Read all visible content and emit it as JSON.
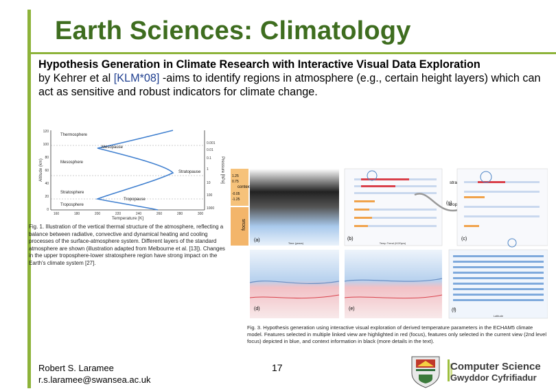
{
  "slide": {
    "title": "Earth Sciences: Climatology",
    "subtitle_bold": "Hypothesis Generation in Climate Research with Interactive Visual Data Exploration",
    "body_pre": "by Kehrer et al ",
    "body_ref": "[KLM*08]",
    "body_post": " -aims to identify regions in atmosphere (e.g., certain height layers) which can act as sensitive and robust indicators for climate change."
  },
  "figure1": {
    "ylabel": "Altitude (km)",
    "xlabel": "Temperature [K]",
    "right_label": "Pressure [hPa]",
    "layers": [
      "Thermosphere",
      "Mesopause",
      "Mesosphere",
      "Stratopause",
      "Stratosphere",
      "Tropopause",
      "Troposphere"
    ],
    "y_ticks": [
      "120",
      "100",
      "80",
      "60",
      "40",
      "20",
      "0"
    ],
    "x_ticks": [
      "160",
      "180",
      "200",
      "220",
      "240",
      "260",
      "280",
      "300"
    ],
    "p_ticks": [
      "0.001",
      "0.01",
      "0.1",
      "1",
      "10",
      "100",
      "1000"
    ],
    "caption": "Fig. 1. Illustration of the vertical thermal structure of the atmosphere, reflecting a balance between radiative, convective and dynamical heating and cooling processes of the surface-atmosphere system. Different layers of the standard atmosphere are shown (illustration adapted from Melbourne et al. [13]). Changes in the upper troposphere-lower stratosphere region have strong impact on the Earth's climate system [27]."
  },
  "figure3": {
    "panels": [
      "(a)",
      "(b)",
      "(c)",
      "(d)",
      "(e)",
      "(f)",
      "(g)"
    ],
    "context_label": "context",
    "focus_label": "focus",
    "left_values": [
      "1.25",
      "0.75",
      "-0.05",
      "-1.25"
    ],
    "stratosphere_label": "strato-sphere",
    "troposphere_label": "tropo-sphere",
    "tropopause_label": "tropo-pause",
    "axis_time": "Time (years)",
    "axis_trend": "Temp Trend (K/20yrs)",
    "axis_latitude": "Latitude",
    "caption": "Fig. 3. Hypothesis generation using interactive visual exploration of derived temperature parameters in the ECHAM5 climate model. Features selected in multiple linked view are highlighted in red (focus), features only selected in the current view (2nd level focus) depicted in blue, and context information in black (more details in the text)."
  },
  "footer": {
    "author": "Robert S. Laramee",
    "email": "r.s.laramee@swansea.ac.uk",
    "page": "17",
    "dept_en": "Computer Science",
    "dept_cy": "Gwyddor Cyfrifiadur"
  },
  "colors": {
    "accent": "#8db33a",
    "title": "#3e6d1f",
    "focus": "#d9404a",
    "selection": "#4f86c6"
  }
}
